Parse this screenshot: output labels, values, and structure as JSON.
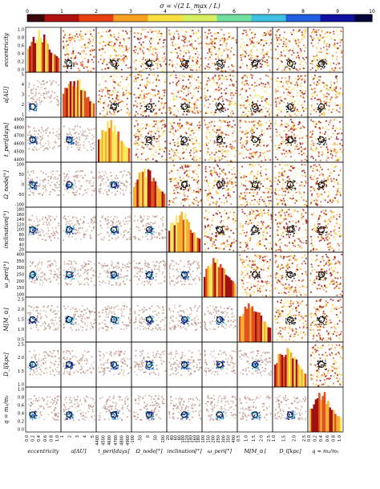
{
  "chart_data": {
    "type": "heatmap",
    "subtype": "corner-plot",
    "colorbar": {
      "label": "σ = √(2 L_max / L)",
      "ticks": [
        "0",
        "1",
        "2",
        "3",
        "4",
        "5",
        "6",
        "7",
        "8",
        "9",
        "10"
      ],
      "range": [
        0,
        10
      ],
      "colors": [
        "#3a0a0a",
        "#b01010",
        "#e84010",
        "#f8a020",
        "#f8e040",
        "#d8f060",
        "#70e0a0",
        "#40c0e0",
        "#2060e0",
        "#1010a0",
        "#05053a"
      ]
    },
    "parameters": [
      {
        "key": "ecc",
        "label": "eccentricity",
        "ticks": [
          "0.0",
          "0.2",
          "0.4",
          "0.6",
          "0.8",
          "1.0"
        ],
        "best": 0.08
      },
      {
        "key": "a",
        "label": "a[AU]",
        "ticks": [
          "1",
          "2",
          "3",
          "4",
          "5"
        ],
        "best": 1.1
      },
      {
        "key": "tperi",
        "label": "t_peri[days]",
        "ticks": [
          "4400",
          "4500",
          "4600",
          "4700",
          "4800",
          "4900"
        ],
        "best": 4700
      },
      {
        "key": "omega_node",
        "label": "Ω_node[°]",
        "ticks": [
          "-100",
          "-50",
          "0",
          "50",
          "100"
        ],
        "best": -10
      },
      {
        "key": "incl",
        "label": "inclination[°]",
        "ticks": [
          "20",
          "40",
          "60",
          "80",
          "100",
          "120",
          "140",
          "160",
          "180"
        ],
        "best": 30
      },
      {
        "key": "omega_peri",
        "label": "ω_peri[°]",
        "ticks": [
          "100",
          "150",
          "200",
          "250",
          "300",
          "350",
          "400"
        ],
        "best": 200
      },
      {
        "key": "M",
        "label": "M[M_⊙]",
        "ticks": [
          "0.5",
          "1.0",
          "1.5",
          "2.0",
          "2.5"
        ],
        "best": 1.0
      },
      {
        "key": "D",
        "label": "D_l[kpc]",
        "ticks": [
          "1.0",
          "1.5",
          "2.0",
          "2.5"
        ],
        "best": 1.2
      },
      {
        "key": "q",
        "label": "q = m₂/m₁",
        "ticks": [
          "0.0",
          "0.2",
          "0.4",
          "0.6",
          "0.8",
          "1.0"
        ],
        "best": 0.3
      }
    ]
  }
}
